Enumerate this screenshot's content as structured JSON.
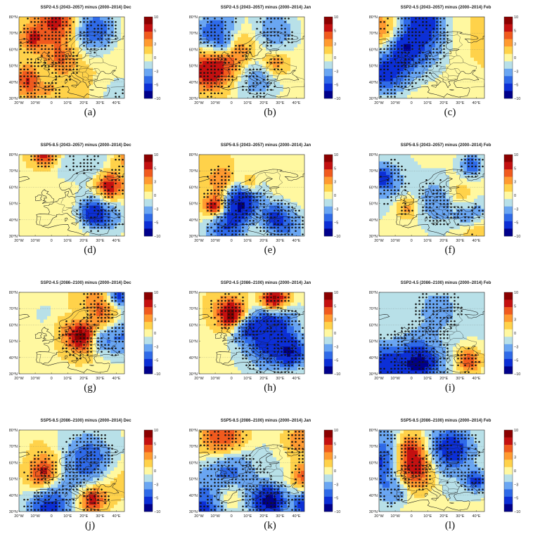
{
  "colors": {
    "scale": [
      "#00008b",
      "#0c2fd6",
      "#2f6ae8",
      "#6aa6f2",
      "#b8e0e8",
      "#fff8a0",
      "#ffd24a",
      "#ff9a30",
      "#f05a1e",
      "#c41010",
      "#8b0000"
    ],
    "land": "#1a1a1a",
    "stipple": "#111111"
  },
  "colorbar": {
    "levels": [
      "10",
      "5",
      "3",
      "0",
      "−3",
      "−5",
      "−10"
    ]
  },
  "axes": {
    "yticks": [
      "80°N",
      "70°N",
      "60°N",
      "50°N",
      "40°N",
      "30°N"
    ],
    "xticks": [
      "20°W",
      "10°W",
      "0",
      "10°E",
      "20°E",
      "30°E",
      "40°E"
    ]
  },
  "chart_data": [
    {
      "id": "a",
      "type": "heatmap",
      "title": "SSP2-4.5 (2043–2057) minus (2000–2014) Dec",
      "label": "(a)",
      "xlim": [
        -20,
        45
      ],
      "ylim": [
        30,
        80
      ],
      "clim": [
        -10,
        10
      ],
      "seed": 11,
      "bias": 0.8
    },
    {
      "id": "b",
      "type": "heatmap",
      "title": "SSP2-4.5 (2043–2057) minus (2000–2014) Jan",
      "label": "(b)",
      "xlim": [
        -20,
        45
      ],
      "ylim": [
        30,
        80
      ],
      "clim": [
        -10,
        10
      ],
      "seed": 23,
      "bias": 0.2
    },
    {
      "id": "c",
      "type": "heatmap",
      "title": "SSP2-4.5 (2043–2057) minus (2000–2014) Feb",
      "label": "(c)",
      "xlim": [
        -20,
        45
      ],
      "ylim": [
        30,
        80
      ],
      "clim": [
        -10,
        10
      ],
      "seed": 37,
      "bias": 0.6
    },
    {
      "id": "d",
      "type": "heatmap",
      "title": "SSP5-8.5 (2043–2057) minus (2000–2014) Dec",
      "label": "(d)",
      "xlim": [
        -20,
        45
      ],
      "ylim": [
        30,
        80
      ],
      "clim": [
        -10,
        10
      ],
      "seed": 41,
      "bias": 0.4
    },
    {
      "id": "e",
      "type": "heatmap",
      "title": "SSP5-8.5 (2043–2057) minus (2000–2014) Jan",
      "label": "(e)",
      "xlim": [
        -20,
        45
      ],
      "ylim": [
        30,
        80
      ],
      "clim": [
        -10,
        10
      ],
      "seed": 53,
      "bias": 0.5
    },
    {
      "id": "f",
      "type": "heatmap",
      "title": "SSP5-8.5 (2043–2057) minus (2000–2014) Feb",
      "label": "(f)",
      "xlim": [
        -20,
        45
      ],
      "ylim": [
        30,
        80
      ],
      "clim": [
        -10,
        10
      ],
      "seed": 67,
      "bias": -0.3
    },
    {
      "id": "g",
      "type": "heatmap",
      "title": "SSP2-4.5 (2086–2100) minus (2000–2014) Dec",
      "label": "(g)",
      "xlim": [
        -20,
        45
      ],
      "ylim": [
        30,
        80
      ],
      "clim": [
        -10,
        10
      ],
      "seed": 71,
      "bias": 0.1
    },
    {
      "id": "h",
      "type": "heatmap",
      "title": "SSP2-4.5 (2086–2100) minus (2000–2014) Jan",
      "label": "(h)",
      "xlim": [
        -20,
        45
      ],
      "ylim": [
        30,
        80
      ],
      "clim": [
        -10,
        10
      ],
      "seed": 83,
      "bias": -0.1
    },
    {
      "id": "i",
      "type": "heatmap",
      "title": "SSP2-4.5 (2086–2100) minus (2000–2014) Feb",
      "label": "(i)",
      "xlim": [
        -20,
        45
      ],
      "ylim": [
        30,
        80
      ],
      "clim": [
        -10,
        10
      ],
      "seed": 97,
      "bias": -0.6
    },
    {
      "id": "j",
      "type": "heatmap",
      "title": "SSP5-8.5 (2086–2100) minus (2000–2014) Dec",
      "label": "(j)",
      "xlim": [
        -20,
        45
      ],
      "ylim": [
        30,
        80
      ],
      "clim": [
        -10,
        10
      ],
      "seed": 101,
      "bias": -0.4
    },
    {
      "id": "k",
      "type": "heatmap",
      "title": "SSP5-8.5 (2086–2100) minus (2000–2014) Jan",
      "label": "(k)",
      "xlim": [
        -20,
        45
      ],
      "ylim": [
        30,
        80
      ],
      "clim": [
        -10,
        10
      ],
      "seed": 113,
      "bias": -0.7
    },
    {
      "id": "l",
      "type": "heatmap",
      "title": "SSP5-8.5 (2086–2100) minus (2000–2014) Feb",
      "label": "(l)",
      "xlim": [
        -20,
        45
      ],
      "ylim": [
        30,
        80
      ],
      "clim": [
        -10,
        10
      ],
      "seed": 127,
      "bias": -0.2
    }
  ]
}
